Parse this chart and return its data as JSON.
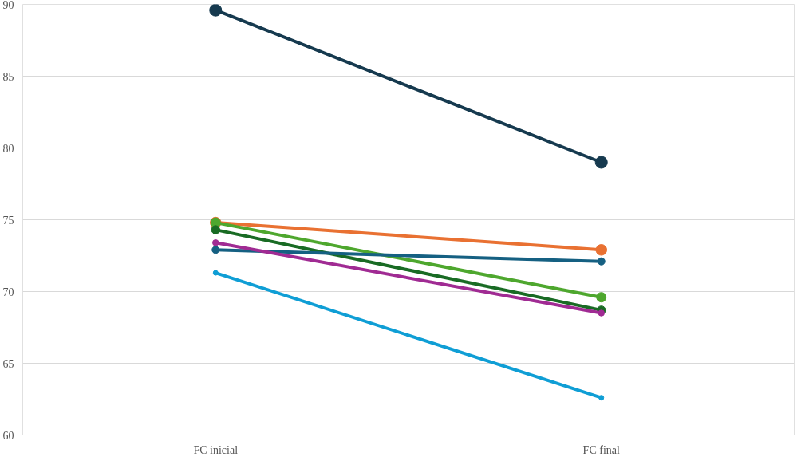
{
  "chart_data": {
    "type": "line",
    "categories": [
      "FC inicial",
      "FC final"
    ],
    "series": [
      {
        "color": "#163a4f",
        "values": [
          89.6,
          79.0
        ]
      },
      {
        "color": "#e97132",
        "values": [
          74.8,
          72.9
        ]
      },
      {
        "color": "#4ea72e",
        "values": [
          74.8,
          69.6
        ]
      },
      {
        "color": "#196b24",
        "values": [
          74.3,
          68.7
        ]
      },
      {
        "color": "#156082",
        "values": [
          72.9,
          72.1
        ]
      },
      {
        "color": "#a02b93",
        "values": [
          73.4,
          68.5
        ]
      },
      {
        "color": "#0f9ed5",
        "values": [
          71.3,
          62.6
        ]
      }
    ],
    "ylim": [
      60,
      90
    ],
    "yticks": [
      60,
      65,
      70,
      75,
      80,
      85,
      90
    ],
    "grid": "y",
    "marker": "circle",
    "line_style": "solid"
  }
}
